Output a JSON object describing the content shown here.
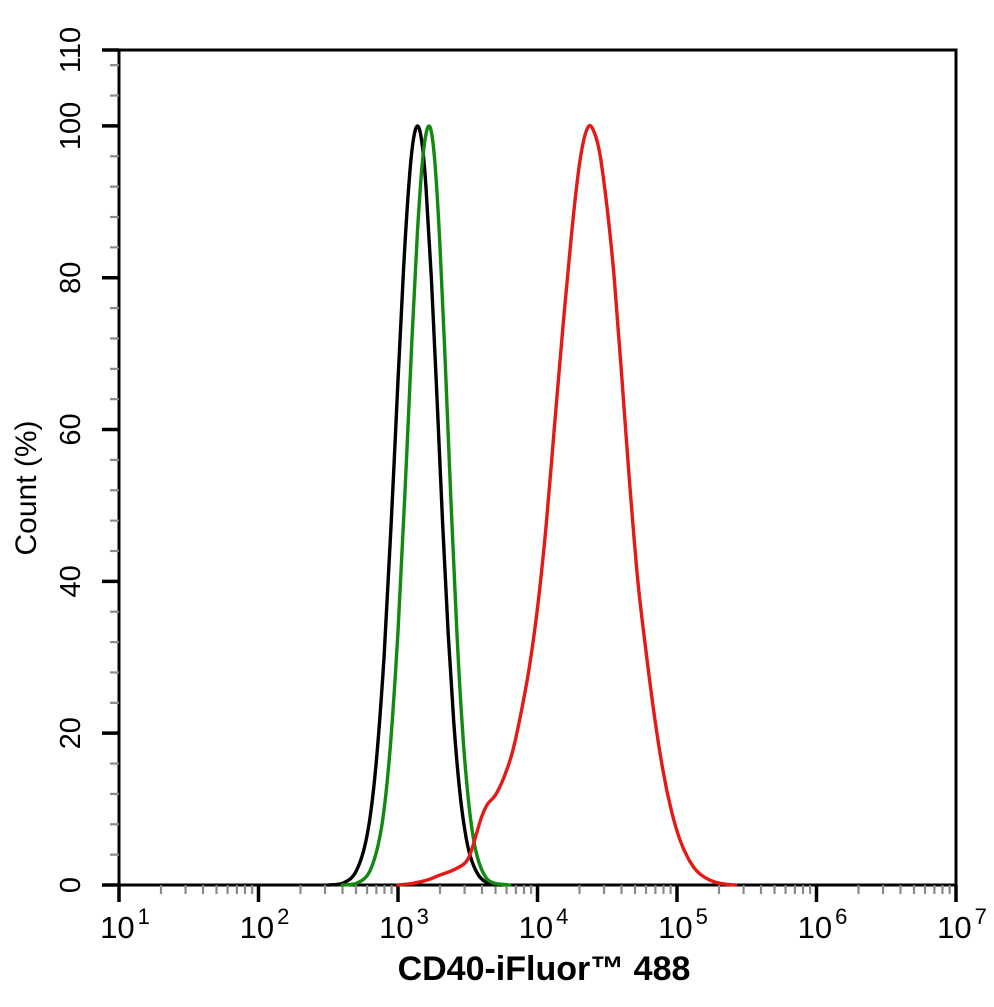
{
  "chart_data": {
    "type": "line",
    "subtype": "flow-cytometry-overlay-histogram",
    "title": "",
    "xlabel": "CD40-iFluor™ 488",
    "ylabel": "Count  (%)",
    "x_scale": "log10",
    "x_tick_label_base": "10",
    "x_decade_exponents": [
      1,
      2,
      3,
      4,
      5,
      6,
      7
    ],
    "x_minor_multiples": [
      2,
      3,
      4,
      5,
      6,
      7,
      8,
      9
    ],
    "xlim_log": [
      1,
      7
    ],
    "ylim": [
      0,
      110
    ],
    "y_major_ticks": [
      0,
      20,
      40,
      60,
      80,
      100,
      110
    ],
    "y_minor_step": 4,
    "grid": false,
    "legend": null,
    "background_color": "#ffffff",
    "axis_color": "#000000",
    "minor_tick_color": "#8a8a8a",
    "series": [
      {
        "name": "black-control-curve",
        "color": "#000000",
        "peak_channel_approx": 1350,
        "peak_percent": 100,
        "points_log10x_percent": [
          [
            2.5,
            0
          ],
          [
            2.6,
            0.2
          ],
          [
            2.7,
            1.8
          ],
          [
            2.78,
            6.7
          ],
          [
            2.84,
            15.4
          ],
          [
            2.9,
            30.1
          ],
          [
            2.95,
            47.2
          ],
          [
            3.0,
            66.5
          ],
          [
            3.04,
            81.2
          ],
          [
            3.08,
            92.8
          ],
          [
            3.11,
            98.1
          ],
          [
            3.14,
            100
          ],
          [
            3.17,
            98.0
          ],
          [
            3.2,
            92.1
          ],
          [
            3.24,
            79.6
          ],
          [
            3.28,
            63.9
          ],
          [
            3.32,
            47.7
          ],
          [
            3.36,
            33.1
          ],
          [
            3.4,
            21.4
          ],
          [
            3.44,
            12.8
          ],
          [
            3.48,
            7.1
          ],
          [
            3.52,
            3.7
          ],
          [
            3.57,
            1.5
          ],
          [
            3.62,
            0.5
          ],
          [
            3.68,
            0.1
          ],
          [
            3.74,
            0
          ]
        ]
      },
      {
        "name": "green-isotype-curve",
        "color": "#128a12",
        "peak_channel_approx": 1650,
        "peak_percent": 100,
        "points_log10x_percent": [
          [
            2.6,
            0
          ],
          [
            2.7,
            0.2
          ],
          [
            2.8,
            1.9
          ],
          [
            2.88,
            7.4
          ],
          [
            2.94,
            17.1
          ],
          [
            3.0,
            33.4
          ],
          [
            3.05,
            51.8
          ],
          [
            3.1,
            71.8
          ],
          [
            3.14,
            86.2
          ],
          [
            3.18,
            96.2
          ],
          [
            3.222,
            100
          ],
          [
            3.26,
            96.1
          ],
          [
            3.3,
            84.6
          ],
          [
            3.34,
            68.3
          ],
          [
            3.38,
            50.4
          ],
          [
            3.42,
            34.1
          ],
          [
            3.46,
            21.1
          ],
          [
            3.5,
            12.0
          ],
          [
            3.54,
            6.2
          ],
          [
            3.58,
            3.0
          ],
          [
            3.63,
            1.0
          ],
          [
            3.68,
            0.3
          ],
          [
            3.74,
            0.1
          ],
          [
            3.8,
            0
          ]
        ]
      },
      {
        "name": "red-cd40-stained-curve",
        "color": "#e41a17",
        "peak_channel_approx": 22000,
        "peak_percent": 100,
        "points_log10x_percent": [
          [
            3.0,
            0
          ],
          [
            3.1,
            0.2
          ],
          [
            3.2,
            0.6
          ],
          [
            3.3,
            1.3
          ],
          [
            3.4,
            2.0
          ],
          [
            3.48,
            2.9
          ],
          [
            3.52,
            4.2
          ],
          [
            3.56,
            6.6
          ],
          [
            3.6,
            9.0
          ],
          [
            3.64,
            10.6
          ],
          [
            3.7,
            11.9
          ],
          [
            3.76,
            14.2
          ],
          [
            3.82,
            17.5
          ],
          [
            3.88,
            22.5
          ],
          [
            3.94,
            28.5
          ],
          [
            4.0,
            36.5
          ],
          [
            4.06,
            47
          ],
          [
            4.12,
            60
          ],
          [
            4.18,
            73
          ],
          [
            4.24,
            85
          ],
          [
            4.29,
            93.5
          ],
          [
            4.33,
            98
          ],
          [
            4.37,
            100
          ],
          [
            4.41,
            99
          ],
          [
            4.45,
            96
          ],
          [
            4.5,
            89
          ],
          [
            4.55,
            80
          ],
          [
            4.6,
            68
          ],
          [
            4.66,
            53
          ],
          [
            4.72,
            40
          ],
          [
            4.78,
            30.5
          ],
          [
            4.84,
            22
          ],
          [
            4.9,
            15
          ],
          [
            4.96,
            9.8
          ],
          [
            5.02,
            6.0
          ],
          [
            5.08,
            3.5
          ],
          [
            5.14,
            1.9
          ],
          [
            5.2,
            1.0
          ],
          [
            5.27,
            0.4
          ],
          [
            5.35,
            0.1
          ],
          [
            5.42,
            0
          ]
        ]
      }
    ]
  }
}
